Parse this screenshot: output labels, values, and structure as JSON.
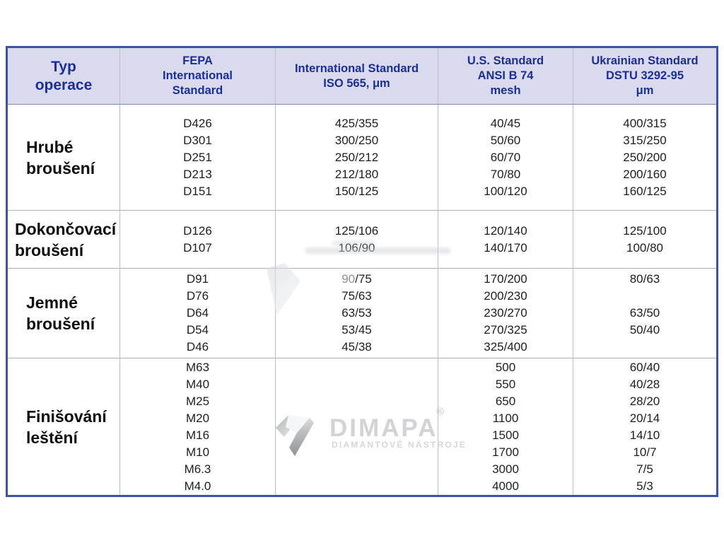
{
  "table": {
    "border_color": "#3a54a5",
    "header_bg": "#d9daee",
    "header_text_color": "#1b2e96",
    "columns": [
      {
        "id": "operation",
        "label_lines": [
          "Typ",
          "operace"
        ]
      },
      {
        "id": "fepa",
        "label_lines": [
          "FEPA",
          "International",
          "Standard"
        ]
      },
      {
        "id": "iso",
        "label_lines": [
          "International Standard",
          "ISO 565, μm"
        ]
      },
      {
        "id": "ansi",
        "label_lines": [
          "U.S. Standard",
          "ANSI B 74",
          "mesh"
        ]
      },
      {
        "id": "dstu",
        "label_lines": [
          "Ukrainian Standard",
          "DSTU 3292-95",
          "μm"
        ]
      }
    ],
    "rows": [
      {
        "operation_lines": [
          "Hrubé",
          "broušení"
        ],
        "fepa": [
          "D426",
          "D301",
          "D251",
          "D213",
          "D151"
        ],
        "iso": [
          "425/355",
          "300/250",
          "250/212",
          "212/180",
          "150/125"
        ],
        "ansi": [
          "40/45",
          "50/60",
          "60/70",
          "70/80",
          "100/120"
        ],
        "dstu": [
          "400/315",
          "315/250",
          "250/200",
          "200/160",
          "160/125"
        ]
      },
      {
        "operation_lines": [
          "Dokončovací",
          "broušení"
        ],
        "fepa": [
          "D126",
          "D107"
        ],
        "iso": [
          "125/106",
          "106/90"
        ],
        "ansi": [
          "120/140",
          "140/170"
        ],
        "dstu": [
          "125/100",
          "100/80"
        ]
      },
      {
        "operation_lines": [
          "Jemné",
          "broušení"
        ],
        "fepa": [
          "D91",
          "D76",
          "D64",
          "D54",
          "D46"
        ],
        "iso": [
          "90/75",
          "75/63",
          "63/53",
          "53/45",
          "45/38"
        ],
        "ansi": [
          "170/200",
          "200/230",
          "230/270",
          "270/325",
          "325/400"
        ],
        "dstu": [
          "80/63",
          "",
          "63/50",
          "50/40",
          ""
        ]
      },
      {
        "operation_lines": [
          "Finišování",
          "leštění"
        ],
        "fepa": [
          "M63",
          "M40",
          "M25",
          "M20",
          "M16",
          "M10",
          "M6.3",
          "M4.0"
        ],
        "iso": [],
        "ansi": [
          "500",
          "550",
          "650",
          "1100",
          "1500",
          "1700",
          "3000",
          "4000"
        ],
        "dstu": [
          "60/40",
          "40/28",
          "28/20",
          "20/14",
          "14/10",
          "10/7",
          "7/5",
          "5/3"
        ]
      }
    ],
    "muted_fragment": {
      "row": 2,
      "col": "iso",
      "line": 0,
      "gray_part": "90",
      "rest": "/75"
    }
  },
  "watermark": {
    "brand": "DIMAPA",
    "registered_mark": "®",
    "tagline": "DIAMANTOVÉ NÁSTROJE",
    "brand_color": "#d2d3d6",
    "tagline_color": "#d5d8d5",
    "registered_color": "#c7c8ca"
  }
}
